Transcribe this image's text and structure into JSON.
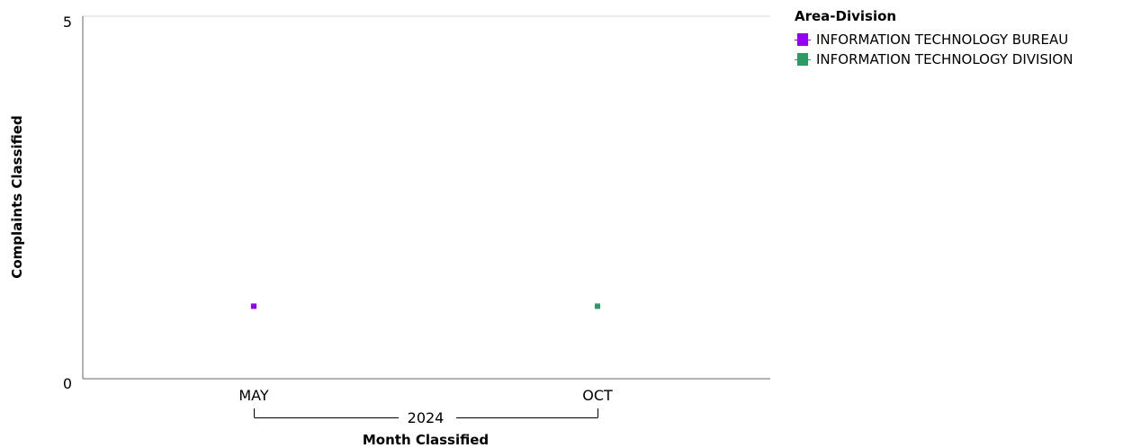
{
  "chart_data": {
    "type": "scatter",
    "title": "",
    "xlabel": "Month Classified",
    "ylabel": "Complaints Classified",
    "categories": [
      "MAY",
      "OCT"
    ],
    "group_label": "2024",
    "ylim": [
      0,
      5
    ],
    "y_ticks": [
      "0",
      "5"
    ],
    "grid": false,
    "legend": {
      "title": "Area-Division",
      "placement": "right"
    },
    "series": [
      {
        "name": "INFORMATION TECHNOLOGY BUREAU",
        "color": "#9400f5",
        "points": [
          {
            "x": "MAY",
            "y": 1
          }
        ]
      },
      {
        "name": "INFORMATION TECHNOLOGY DIVISION",
        "color": "#2e9a63",
        "points": [
          {
            "x": "OCT",
            "y": 1
          }
        ]
      }
    ]
  }
}
